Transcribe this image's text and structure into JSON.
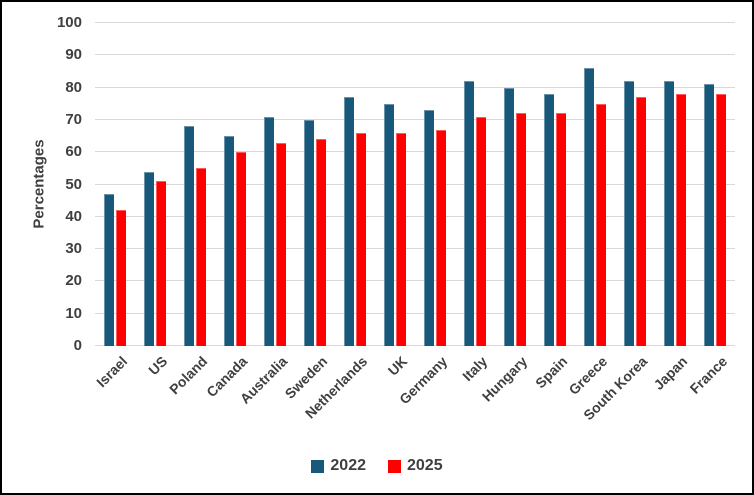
{
  "chart_data": {
    "type": "bar",
    "title": "",
    "categories": [
      "Israel",
      "US",
      "Poland",
      "Canada",
      "Australia",
      "Sweden",
      "Netherlands",
      "UK",
      "Germany",
      "Italy",
      "Hungary",
      "Spain",
      "Greece",
      "South Korea",
      "Japan",
      "France"
    ],
    "series": [
      {
        "name": "2022",
        "color": "#18597B",
        "values": [
          47,
          54,
          68,
          65,
          71,
          70,
          77,
          75,
          73,
          82,
          80,
          78,
          86,
          82,
          82,
          81
        ]
      },
      {
        "name": "2025",
        "color": "#FF0000",
        "values": [
          42,
          51,
          55,
          60,
          63,
          64,
          66,
          66,
          67,
          71,
          72,
          72,
          75,
          77,
          78,
          78
        ]
      }
    ],
    "xlabel": "",
    "ylabel": "Percentages",
    "ylim": [
      0,
      100
    ],
    "ytick_step": 10,
    "yticks": [
      0,
      10,
      20,
      30,
      40,
      50,
      60,
      70,
      80,
      90,
      100
    ],
    "grid": "horizontal",
    "gridline_color": "#D9D9D9",
    "text_color": "#3F3F3F",
    "background": "#FFFFFF",
    "legend_position": "bottom"
  }
}
